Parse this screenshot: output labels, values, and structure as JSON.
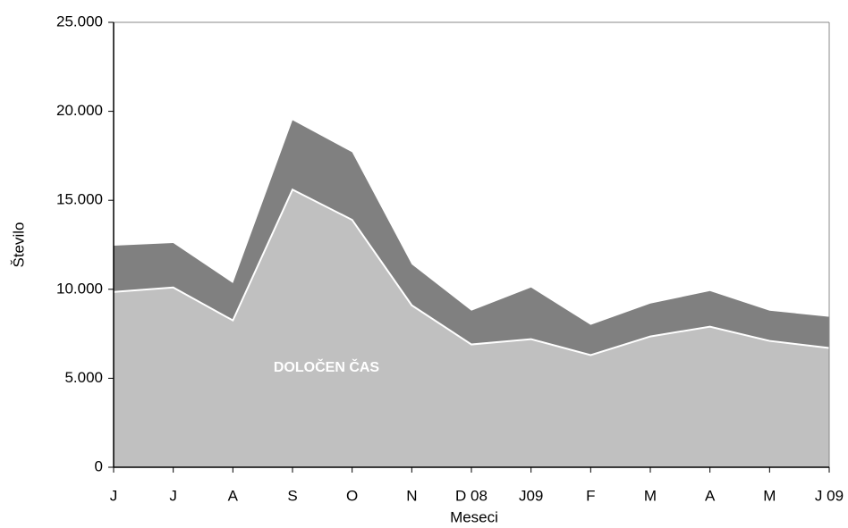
{
  "chart_data": {
    "type": "stacked_area",
    "categories": [
      "J",
      "J",
      "A",
      "S",
      "O",
      "N",
      "D 08",
      "J09",
      "F",
      "M",
      "A",
      "M",
      "J 09"
    ],
    "series": [
      {
        "name": "DOLOČEN ČAS",
        "color": "#c0c0c0",
        "values": [
          9850,
          10100,
          8250,
          15600,
          13900,
          9100,
          6900,
          7200,
          6300,
          7350,
          7900,
          7100,
          6700
        ]
      },
      {
        "color": "#808080",
        "values": [
          2600,
          2500,
          2100,
          3900,
          3800,
          2300,
          1900,
          2900,
          1700,
          1850,
          2000,
          1700,
          1750
        ]
      }
    ],
    "x_label": "Meseci",
    "y_label": "Število",
    "ylim": [
      0,
      25000
    ],
    "yticks": [
      0,
      {
        "value": 5000,
        "label": "5.000"
      },
      {
        "value": 10000,
        "label": "10.000"
      },
      {
        "value": 15000,
        "label": "15.000"
      },
      {
        "value": 20000,
        "label": "20.000"
      },
      {
        "value": 25000,
        "label": "25.000"
      }
    ],
    "grid": false
  }
}
